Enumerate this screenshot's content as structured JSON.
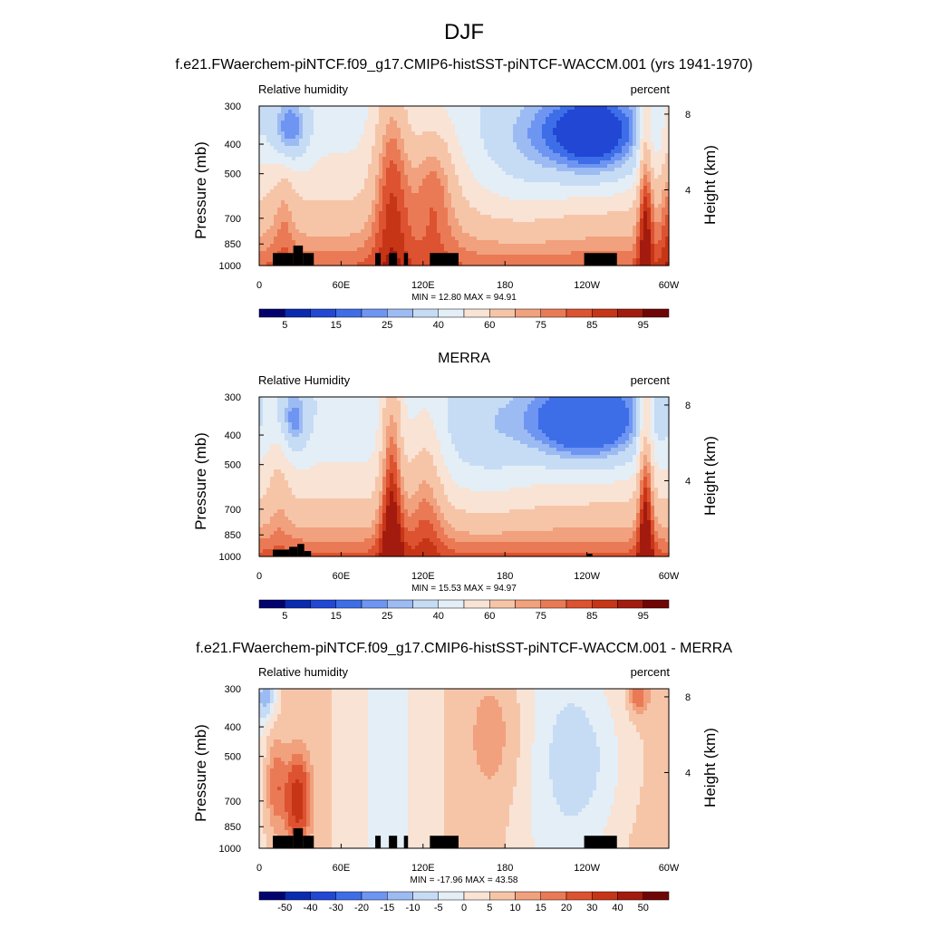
{
  "title": "DJF",
  "chart_data": [
    {
      "type": "heatmap",
      "title": "f.e21.FWaerchem-piNTCF.f09_g17.CMIP6-histSST-piNTCF-WACCM.001 (yrs 1941-1970)",
      "left_label": "Relative humidity",
      "right_label": "percent",
      "ylabel": "Pressure (mb)",
      "y2label": "Height (km)",
      "xticks": [
        "0",
        "60E",
        "120E",
        "180",
        "120W",
        "60W"
      ],
      "yticks": [
        "300",
        "400",
        "500",
        "700",
        "850",
        "1000"
      ],
      "y2ticks": [
        "8",
        "4"
      ],
      "stats": "MIN =  12.80  MAX =  94.91",
      "min": 12.8,
      "max": 94.91,
      "colorbar_ticks": [
        "5",
        "15",
        "25",
        "40",
        "60",
        "75",
        "85",
        "95"
      ],
      "colors": [
        "#03036f",
        "#0a2ab0",
        "#2147d4",
        "#3d6ee8",
        "#6e95f2",
        "#9dbbf3",
        "#c6dcf5",
        "#e4eef6",
        "#f9e3d5",
        "#f6c5a8",
        "#f1a17d",
        "#ea7a55",
        "#dd5230",
        "#c73517",
        "#a31b0e",
        "#6f0505"
      ]
    },
    {
      "type": "heatmap",
      "title": "MERRA",
      "left_label": "Relative Humidity",
      "right_label": "percent",
      "ylabel": "Pressure (mb)",
      "y2label": "Height (km)",
      "xticks": [
        "0",
        "60E",
        "120E",
        "180",
        "120W",
        "60W"
      ],
      "yticks": [
        "300",
        "400",
        "500",
        "700",
        "850",
        "1000"
      ],
      "y2ticks": [
        "8",
        "4"
      ],
      "stats": "MIN =  15.53  MAX =  94.97",
      "min": 15.53,
      "max": 94.97,
      "colorbar_ticks": [
        "5",
        "15",
        "25",
        "40",
        "60",
        "75",
        "85",
        "95"
      ],
      "colors": [
        "#03036f",
        "#0a2ab0",
        "#2147d4",
        "#3d6ee8",
        "#6e95f2",
        "#9dbbf3",
        "#c6dcf5",
        "#e4eef6",
        "#f9e3d5",
        "#f6c5a8",
        "#f1a17d",
        "#ea7a55",
        "#dd5230",
        "#c73517",
        "#a31b0e",
        "#6f0505"
      ]
    },
    {
      "type": "heatmap",
      "title": "f.e21.FWaerchem-piNTCF.f09_g17.CMIP6-histSST-piNTCF-WACCM.001 - MERRA",
      "left_label": "Relative humidity",
      "right_label": "percent",
      "ylabel": "Pressure (mb)",
      "y2label": "Height (km)",
      "xticks": [
        "0",
        "60E",
        "120E",
        "180",
        "120W",
        "60W"
      ],
      "yticks": [
        "300",
        "400",
        "500",
        "700",
        "850",
        "1000"
      ],
      "y2ticks": [
        "8",
        "4"
      ],
      "stats": "MIN = -17.96  MAX =  43.58",
      "min": -17.96,
      "max": 43.58,
      "colorbar_ticks": [
        "-50",
        "-40",
        "-30",
        "-20",
        "-15",
        "-10",
        "-5",
        "0",
        "5",
        "10",
        "15",
        "20",
        "30",
        "40",
        "50"
      ],
      "colors": [
        "#03036f",
        "#0a2ab0",
        "#2147d4",
        "#3d6ee8",
        "#6e95f2",
        "#9dbbf3",
        "#c6dcf5",
        "#e4eef6",
        "#f9e3d5",
        "#f6c5a8",
        "#f1a17d",
        "#ea7a55",
        "#dd5230",
        "#c73517",
        "#a31b0e",
        "#6f0505"
      ]
    }
  ]
}
